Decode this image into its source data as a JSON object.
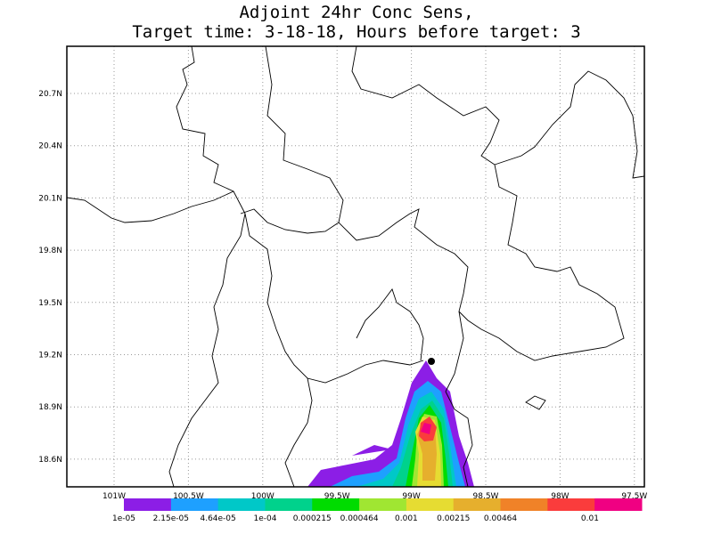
{
  "title": [
    "Adjoint 24hr Conc Sens,",
    "Target time: 3-18-18, Hours before target: 3"
  ],
  "lat_ticks": [
    "20.7N",
    "20.4N",
    "20.1N",
    "19.8N",
    "19.5N",
    "19.2N",
    "18.9N",
    "18.6N"
  ],
  "lon_ticks": [
    "101W",
    "100.5W",
    "100W",
    "99.5W",
    "99W",
    "98.5W",
    "98W",
    "97.5W"
  ],
  "colorbar": {
    "colors": [
      "#8c1ee6",
      "#1ea0ff",
      "#00c8c8",
      "#00d28c",
      "#00dc00",
      "#a0e632",
      "#e6dc32",
      "#e6af2d",
      "#f08228",
      "#fa3c3c",
      "#f00082"
    ],
    "labels": [
      "1e-05",
      "2.15e-05",
      "4.64e-05",
      "1e-04",
      "0.000215",
      "0.000464",
      "0.001",
      "0.00215",
      "0.00464",
      "0.01"
    ]
  }
}
